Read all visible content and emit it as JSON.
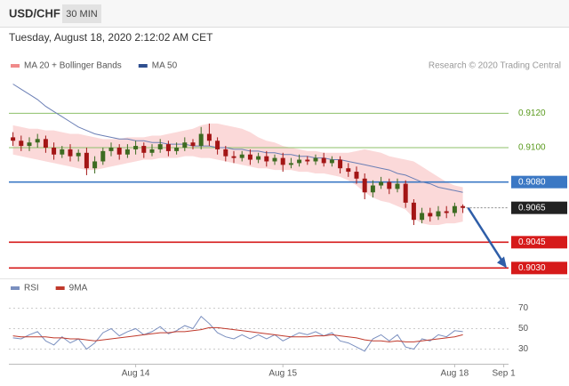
{
  "header": {
    "pair": "USD/CHF",
    "timeframe": "30 MIN",
    "datetime": "Tuesday, August 18, 2020 2:12:02 AM CET"
  },
  "chart_data": [
    {
      "type": "candlestick",
      "legend": [
        {
          "name": "MA 20 + Bollinger Bands",
          "color": "#f08a8a"
        },
        {
          "name": "MA 50",
          "color": "#2f4f8f"
        }
      ],
      "source": "Research © 2020 Trading Central",
      "up_color": "#3d6b21",
      "down_color": "#a31515",
      "band_color": "#fbd9d9",
      "ma_color": "#6b7fb5",
      "ylim": [
        0.9025,
        0.9145
      ],
      "open": [
        0.9106,
        0.9104,
        0.9101,
        0.9103,
        0.9105,
        0.91,
        0.9096,
        0.9099,
        0.9095,
        0.9097,
        0.9088,
        0.9092,
        0.9098,
        0.91,
        0.9096,
        0.9099,
        0.9101,
        0.9097,
        0.9099,
        0.9102,
        0.9098,
        0.91,
        0.9103,
        0.9101,
        0.9108,
        0.9104,
        0.9099,
        0.9095,
        0.9094,
        0.9096,
        0.9093,
        0.9095,
        0.9092,
        0.9094,
        0.909,
        0.9091,
        0.9093,
        0.9092,
        0.9094,
        0.9091,
        0.9093,
        0.9088,
        0.9086,
        0.9082,
        0.9074,
        0.9078,
        0.908,
        0.9076,
        0.9079,
        0.9068,
        0.9058,
        0.9062,
        0.906,
        0.9063,
        0.9062,
        0.9066,
        null,
        null,
        null,
        null,
        null
      ],
      "high": [
        0.9109,
        0.9107,
        0.9106,
        0.9108,
        0.9107,
        0.9103,
        0.9101,
        0.9102,
        0.9099,
        0.91,
        0.9095,
        0.91,
        0.9103,
        0.9102,
        0.9102,
        0.9104,
        0.9103,
        0.9102,
        0.9105,
        0.9104,
        0.9103,
        0.9106,
        0.9105,
        0.9112,
        0.9114,
        0.9106,
        0.9101,
        0.9098,
        0.9098,
        0.9099,
        0.9097,
        0.9098,
        0.9096,
        0.9097,
        0.9094,
        0.9096,
        0.9095,
        0.9096,
        0.9097,
        0.9095,
        0.9095,
        0.9091,
        0.9089,
        0.9085,
        0.9081,
        0.9083,
        0.9082,
        0.9082,
        0.9081,
        0.907,
        0.9065,
        0.9065,
        0.9066,
        0.9066,
        0.9068,
        0.9067,
        null,
        null,
        null,
        null,
        null
      ],
      "low": [
        0.9101,
        0.9098,
        0.9098,
        0.91,
        0.9097,
        0.9093,
        0.9094,
        0.9092,
        0.9092,
        0.9084,
        0.9085,
        0.909,
        0.9095,
        0.9093,
        0.9094,
        0.9096,
        0.9094,
        0.9095,
        0.9097,
        0.9095,
        0.9096,
        0.9098,
        0.9099,
        0.9099,
        0.9101,
        0.9096,
        0.9092,
        0.9091,
        0.9092,
        0.909,
        0.9091,
        0.9089,
        0.909,
        0.9086,
        0.9088,
        0.9089,
        0.909,
        0.909,
        0.9089,
        0.9089,
        0.9085,
        0.9083,
        0.9079,
        0.907,
        0.9071,
        0.9076,
        0.9073,
        0.9074,
        0.9065,
        0.9055,
        0.9056,
        0.9057,
        0.9058,
        0.9059,
        0.906,
        0.9062,
        null,
        null,
        null,
        null,
        null
      ],
      "close": [
        0.9104,
        0.9101,
        0.9103,
        0.9105,
        0.91,
        0.9096,
        0.9099,
        0.9095,
        0.9097,
        0.9088,
        0.9092,
        0.9098,
        0.91,
        0.9096,
        0.9099,
        0.9101,
        0.9097,
        0.9099,
        0.9102,
        0.9098,
        0.91,
        0.9103,
        0.9101,
        0.9108,
        0.9104,
        0.9099,
        0.9095,
        0.9094,
        0.9096,
        0.9093,
        0.9095,
        0.9092,
        0.9094,
        0.909,
        0.9091,
        0.9093,
        0.9092,
        0.9094,
        0.9091,
        0.9093,
        0.9088,
        0.9086,
        0.9082,
        0.9074,
        0.9078,
        0.908,
        0.9076,
        0.9079,
        0.9068,
        0.9058,
        0.9062,
        0.906,
        0.9063,
        0.9062,
        0.9066,
        0.9065,
        null,
        null,
        null,
        null,
        null
      ],
      "ma50": [
        0.9137,
        0.9134,
        0.9131,
        0.9128,
        0.9124,
        0.9121,
        0.9118,
        0.9115,
        0.9112,
        0.911,
        0.9108,
        0.9107,
        0.9106,
        0.9105,
        0.9105,
        0.9104,
        0.9104,
        0.9103,
        0.9103,
        0.9102,
        0.9102,
        0.9102,
        0.9101,
        0.9101,
        0.9101,
        0.91,
        0.91,
        0.9099,
        0.9099,
        0.9098,
        0.9098,
        0.9097,
        0.9097,
        0.9096,
        0.9096,
        0.9095,
        0.9095,
        0.9094,
        0.9094,
        0.9093,
        0.9093,
        0.9092,
        0.9091,
        0.909,
        0.9089,
        0.9088,
        0.9087,
        0.9085,
        0.9084,
        0.9082,
        0.908,
        0.9079,
        0.9077,
        0.9076,
        0.9075,
        0.9074,
        null,
        null,
        null,
        null,
        null
      ],
      "bollinger_upper": [
        0.9113,
        0.9112,
        0.9111,
        0.9111,
        0.911,
        0.911,
        0.9109,
        0.9108,
        0.9108,
        0.9107,
        0.9106,
        0.9105,
        0.9105,
        0.9105,
        0.9106,
        0.9106,
        0.9106,
        0.9107,
        0.9107,
        0.9108,
        0.9109,
        0.911,
        0.9111,
        0.9113,
        0.9114,
        0.9114,
        0.9113,
        0.9112,
        0.9111,
        0.9109,
        0.9106,
        0.9104,
        0.9103,
        0.9101,
        0.91,
        0.9099,
        0.9098,
        0.9098,
        0.9097,
        0.9097,
        0.9097,
        0.9097,
        0.9098,
        0.9099,
        0.9098,
        0.9097,
        0.9095,
        0.9094,
        0.9093,
        0.9092,
        0.9089,
        0.9086,
        0.9083,
        0.908,
        0.9078,
        0.9077,
        null,
        null,
        null,
        null,
        null
      ],
      "bollinger_lower": [
        0.9096,
        0.9095,
        0.9094,
        0.9093,
        0.9092,
        0.9091,
        0.909,
        0.9089,
        0.9088,
        0.9087,
        0.9087,
        0.9088,
        0.9089,
        0.909,
        0.9091,
        0.9092,
        0.9093,
        0.9093,
        0.9094,
        0.9094,
        0.9094,
        0.9095,
        0.9095,
        0.9094,
        0.9094,
        0.9093,
        0.9092,
        0.9091,
        0.909,
        0.9089,
        0.9088,
        0.9088,
        0.9087,
        0.9087,
        0.9087,
        0.9086,
        0.9086,
        0.9085,
        0.9085,
        0.9084,
        0.9083,
        0.9081,
        0.9078,
        0.9074,
        0.9071,
        0.9069,
        0.9068,
        0.9066,
        0.9064,
        0.9059,
        0.9056,
        0.9055,
        0.9055,
        0.9056,
        0.9056,
        0.9057,
        null,
        null,
        null,
        null,
        null
      ],
      "levels": [
        {
          "value": 0.912,
          "label": "0.9120",
          "color": "#8dc06a",
          "text_color": "#5a9a1e",
          "box": false
        },
        {
          "value": 0.91,
          "label": "0.9100",
          "color": "#8dc06a",
          "text_color": "#5a9a1e",
          "box": false
        },
        {
          "value": 0.908,
          "label": "0.9080",
          "color": "#3b78c4",
          "text_color": "#ffffff",
          "box": true
        },
        {
          "value": 0.9065,
          "label": "0.9065",
          "color": "#222222",
          "text_color": "#ffffff",
          "box": true
        },
        {
          "value": 0.9045,
          "label": "0.9045",
          "color": "#d61a1a",
          "text_color": "#ffffff",
          "box": true
        },
        {
          "value": 0.903,
          "label": "0.9030",
          "color": "#d61a1a",
          "text_color": "#ffffff",
          "box": true
        }
      ]
    },
    {
      "type": "line",
      "ylim": [
        20,
        80
      ],
      "yticks": [
        70,
        50,
        30
      ],
      "categories": [
        null,
        null,
        null,
        null,
        null,
        null,
        null,
        null,
        null,
        null,
        null,
        null,
        null,
        null,
        null,
        "Aug 14",
        null,
        null,
        null,
        null,
        null,
        null,
        null,
        null,
        null,
        null,
        null,
        null,
        null,
        null,
        null,
        null,
        null,
        "Aug 15",
        null,
        null,
        null,
        null,
        null,
        null,
        null,
        null,
        null,
        null,
        null,
        null,
        null,
        null,
        null,
        null,
        null,
        null,
        null,
        null,
        "Aug 18",
        null,
        null,
        null,
        null,
        null,
        "Sep 1"
      ],
      "series": [
        {
          "name": "RSI",
          "color": "#7a8fbf",
          "values": [
            41,
            40,
            44,
            47,
            38,
            34,
            42,
            36,
            40,
            30,
            36,
            46,
            50,
            43,
            47,
            50,
            44,
            47,
            52,
            45,
            48,
            53,
            50,
            62,
            55,
            46,
            42,
            40,
            44,
            40,
            44,
            40,
            44,
            38,
            42,
            46,
            44,
            47,
            43,
            46,
            38,
            36,
            32,
            28,
            40,
            44,
            38,
            44,
            32,
            30,
            40,
            38,
            44,
            42,
            48,
            47,
            null,
            null,
            null,
            null,
            null
          ]
        },
        {
          "name": "9MA",
          "color": "#c0392b",
          "values": [
            43,
            42,
            42,
            42,
            42,
            41,
            41,
            40,
            40,
            39,
            38,
            39,
            40,
            41,
            42,
            43,
            44,
            45,
            46,
            46,
            47,
            47,
            48,
            49,
            51,
            51,
            50,
            49,
            48,
            47,
            46,
            45,
            44,
            43,
            42,
            42,
            42,
            43,
            43,
            44,
            43,
            42,
            41,
            39,
            38,
            38,
            37,
            38,
            37,
            37,
            38,
            39,
            40,
            41,
            42,
            44,
            null,
            null,
            null,
            null,
            null
          ]
        }
      ]
    }
  ]
}
